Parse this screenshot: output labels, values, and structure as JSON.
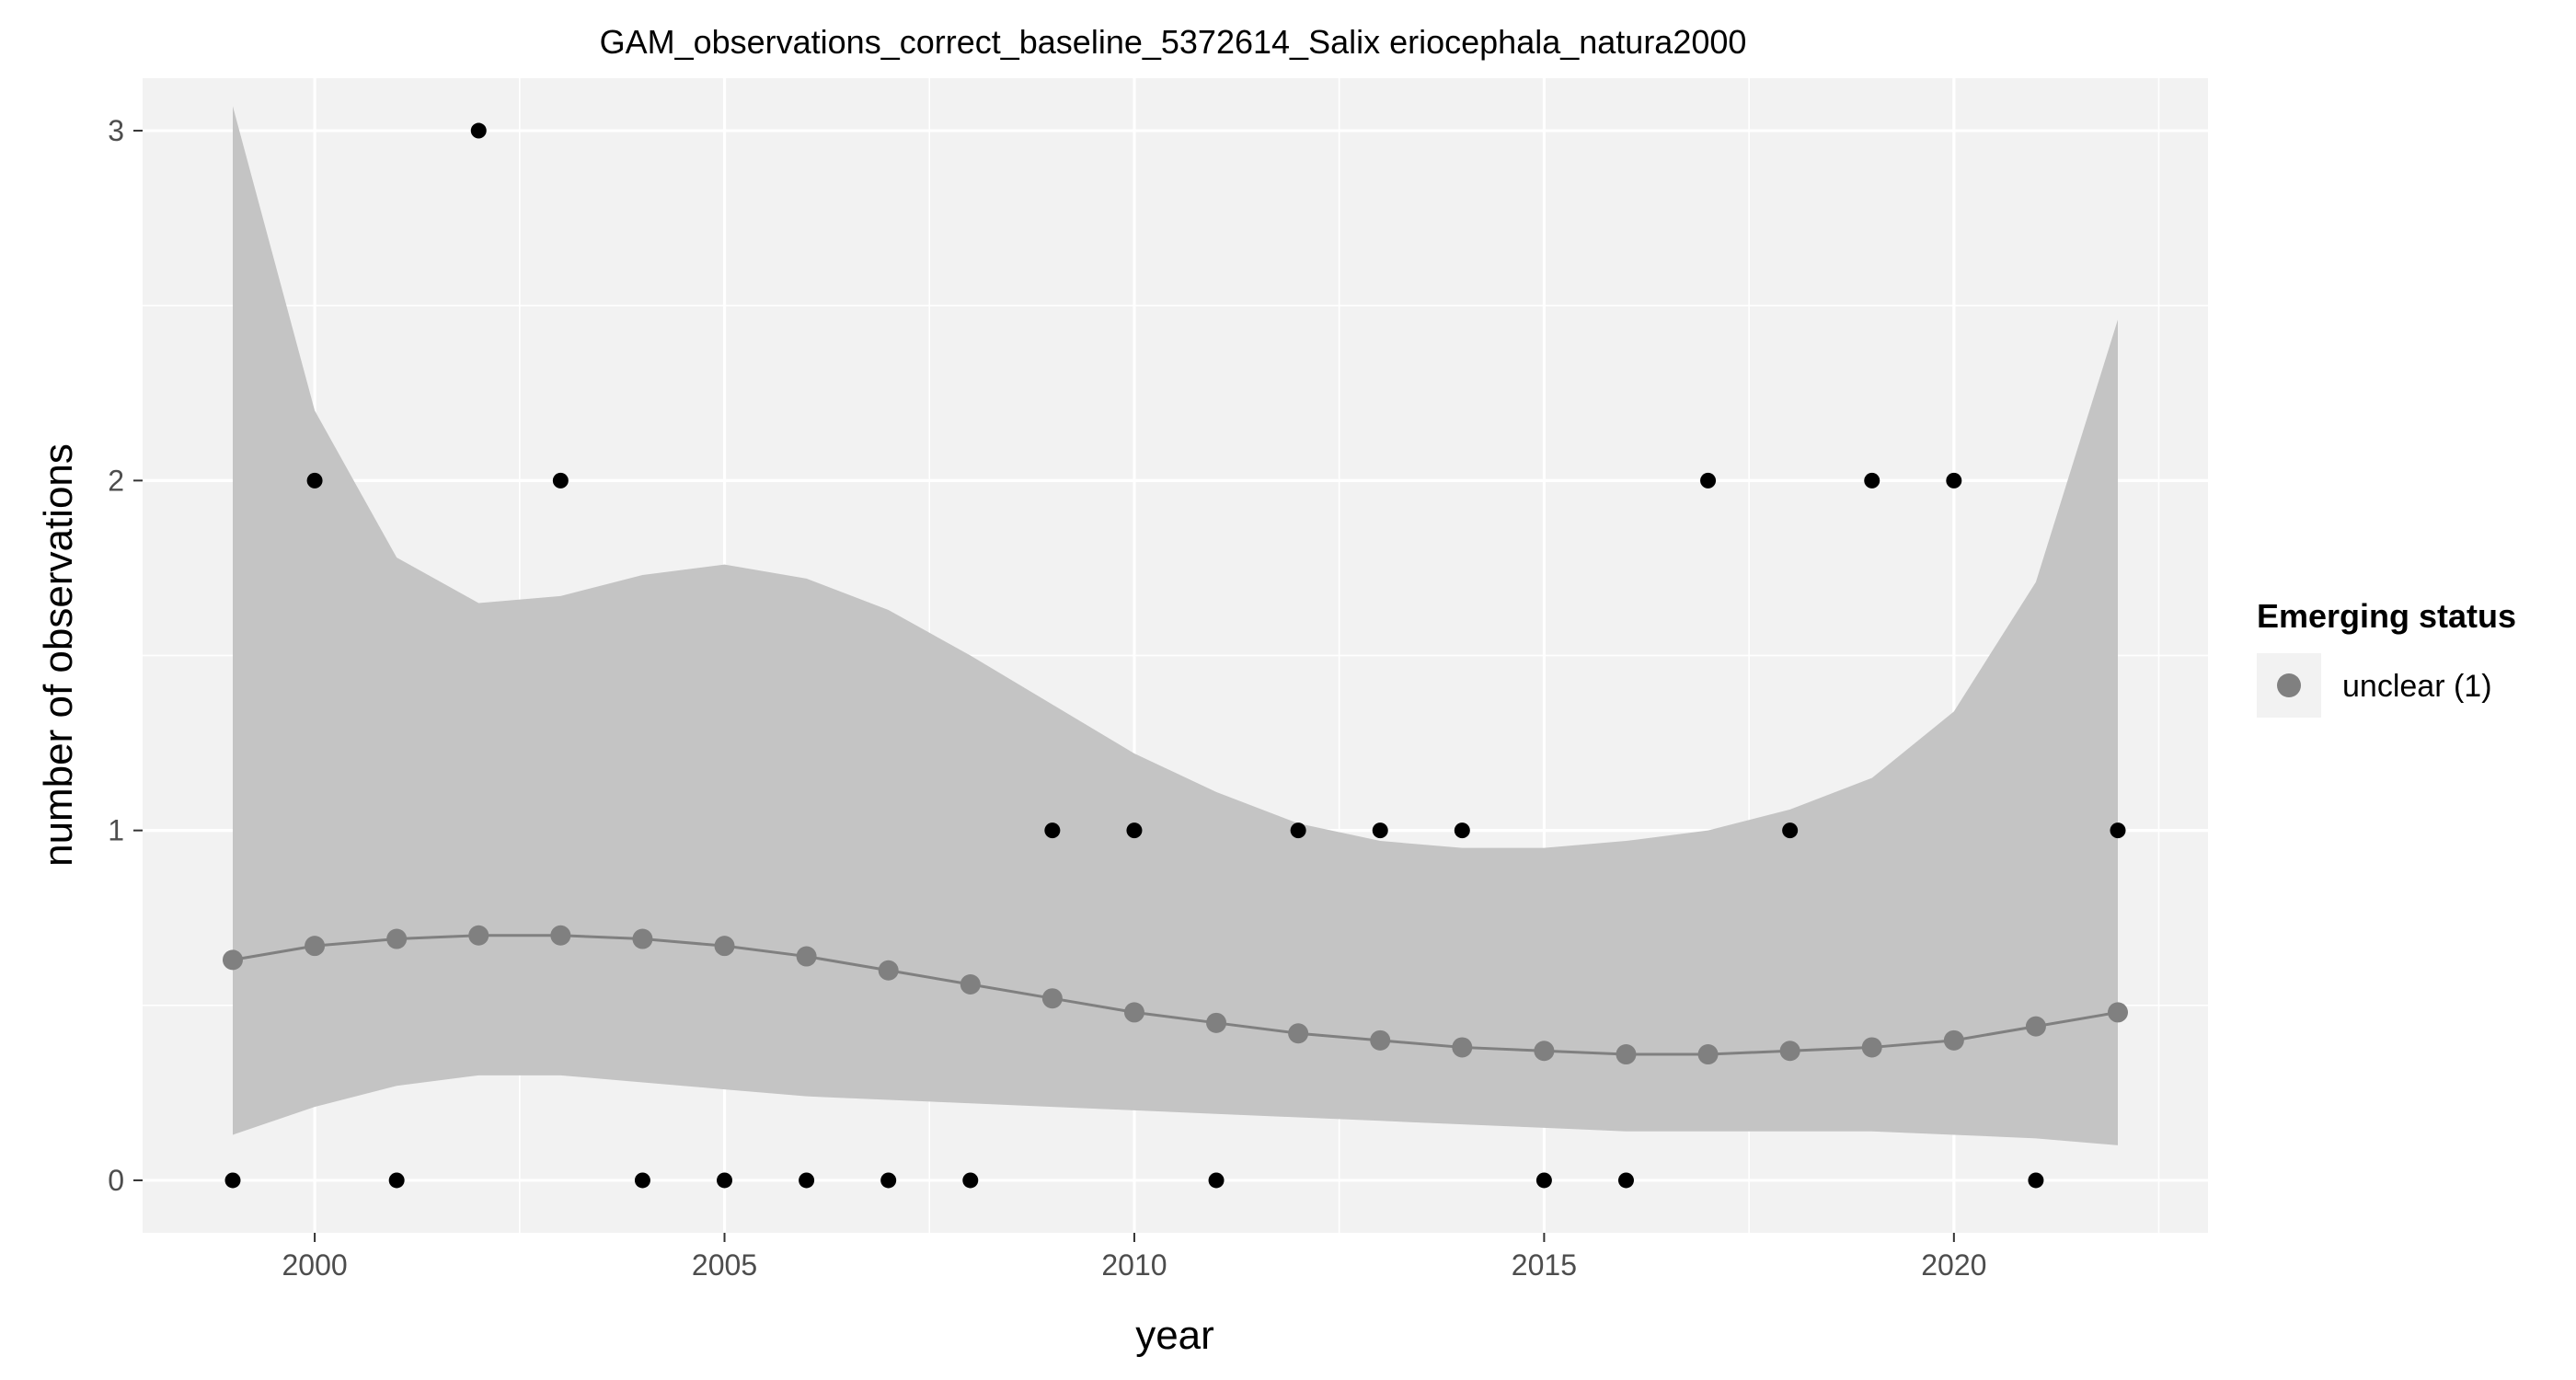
{
  "chart_data": {
    "type": "scatter",
    "title": "GAM_observations_correct_baseline_5372614_Salix eriocephala_natura2000",
    "xlabel": "year",
    "ylabel": "number of observations",
    "xlim": [
      1997.9,
      2023.1
    ],
    "ylim": [
      -0.15,
      3.15
    ],
    "x_ticks": [
      2000,
      2005,
      2010,
      2015,
      2020
    ],
    "y_ticks": [
      0,
      1,
      2,
      3
    ],
    "grid": true,
    "legend": {
      "title": "Emerging status",
      "position": "right",
      "entries": [
        {
          "label": "unclear (1)",
          "color": "#808080"
        }
      ]
    },
    "observations": {
      "x": [
        1999,
        2000,
        2001,
        2002,
        2003,
        2004,
        2005,
        2006,
        2007,
        2008,
        2009,
        2010,
        2011,
        2012,
        2013,
        2014,
        2015,
        2016,
        2017,
        2018,
        2019,
        2020,
        2021,
        2022
      ],
      "y": [
        0,
        2,
        0,
        3,
        2,
        0,
        0,
        0,
        0,
        0,
        1,
        1,
        0,
        1,
        1,
        1,
        0,
        0,
        2,
        1,
        2,
        2,
        0,
        1
      ],
      "color": "#000000"
    },
    "fit": {
      "name": "unclear (1)",
      "x": [
        1999,
        2000,
        2001,
        2002,
        2003,
        2004,
        2005,
        2006,
        2007,
        2008,
        2009,
        2010,
        2011,
        2012,
        2013,
        2014,
        2015,
        2016,
        2017,
        2018,
        2019,
        2020,
        2021,
        2022
      ],
      "y": [
        0.63,
        0.67,
        0.69,
        0.7,
        0.7,
        0.69,
        0.67,
        0.64,
        0.6,
        0.56,
        0.52,
        0.48,
        0.45,
        0.42,
        0.4,
        0.38,
        0.37,
        0.36,
        0.36,
        0.37,
        0.38,
        0.4,
        0.44,
        0.48
      ],
      "lower": [
        0.13,
        0.21,
        0.27,
        0.3,
        0.3,
        0.28,
        0.26,
        0.24,
        0.23,
        0.22,
        0.21,
        0.2,
        0.19,
        0.18,
        0.17,
        0.16,
        0.15,
        0.14,
        0.14,
        0.14,
        0.14,
        0.13,
        0.12,
        0.1
      ],
      "upper": [
        3.07,
        2.2,
        1.78,
        1.65,
        1.67,
        1.73,
        1.76,
        1.72,
        1.63,
        1.5,
        1.36,
        1.22,
        1.11,
        1.02,
        0.97,
        0.95,
        0.95,
        0.97,
        1.0,
        1.06,
        1.15,
        1.34,
        1.71,
        2.46
      ],
      "line_color": "#808080",
      "ribbon_color": "#c4c4c4"
    },
    "panel_background": "#f2f2f2",
    "grid_color": "#ffffff"
  }
}
